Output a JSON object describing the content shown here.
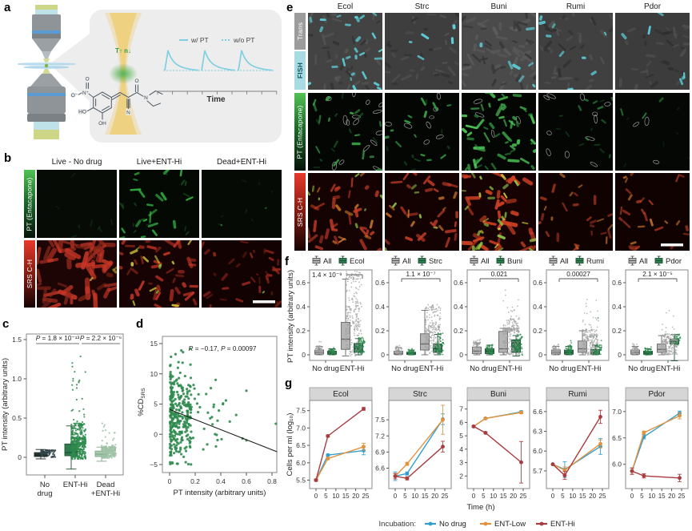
{
  "figure": {
    "letters": {
      "a": "a",
      "b": "b",
      "c": "c",
      "d": "d",
      "e": "e",
      "f": "f",
      "g": "g"
    }
  },
  "panel_a": {
    "legend": {
      "with_pt": "w/ PT",
      "without_pt": "w/o PT"
    },
    "time_label": "Time",
    "thermo_annotation": "T↑ n↓",
    "atom_labels": {
      "o_top": "O",
      "n_plus": "N⁺",
      "o_minus": "O⁻",
      "ho": "HO",
      "oh": "OH",
      "nitrile_n": "N",
      "carbonyl_o": "O",
      "amide_n": "N"
    },
    "colors": {
      "signal_cyan": "#7fcfe2",
      "beam_yellow": "#f0c860",
      "glow_green": "#4fae47",
      "annotation_green": "#2f9e44"
    }
  },
  "panel_b": {
    "columns": [
      "Live - No drug",
      "Live+ENT-Hi",
      "Dead+ENT-Hi"
    ],
    "rows": [
      "PT (Entacapone)",
      "SRS C-H"
    ]
  },
  "panel_e": {
    "columns": [
      "Ecol",
      "Strc",
      "Buni",
      "Rumi",
      "Pdor"
    ],
    "row_labels": [
      "Trans",
      "FISH",
      "PT (Entacapone)",
      "SRS C-H"
    ]
  },
  "chart_data": [
    {
      "id": "c",
      "type": "box",
      "ylabel": "PT intensity (arbitrary units)",
      "yticks": [
        "0",
        "0.5",
        "1.0",
        "1.5"
      ],
      "ylim": [
        -0.45,
        1.62
      ],
      "categories": [
        [
          "No",
          "drug"
        ],
        [
          "ENT-Hi"
        ],
        [
          "Dead",
          "+ENT-Hi"
        ]
      ],
      "p_annotations": [
        "P = 1.8 × 10⁻¹³",
        "P = 2.2 × 10⁻⁶"
      ],
      "boxes": [
        {
          "name": "No drug",
          "color": "#2e3d42",
          "stroke": "#17221f",
          "pt": "#34454b",
          "lo": -0.02,
          "q1": 0.01,
          "med": 0.03,
          "q3": 0.06,
          "hi": 0.1,
          "pmax": 0.09,
          "n": 90
        },
        {
          "name": "ENT-Hi",
          "color": "#2e7d4f",
          "stroke": "#1d5235",
          "pt": "#2f8b4e",
          "lo": -0.15,
          "q1": 0.02,
          "med": 0.06,
          "q3": 0.17,
          "hi": 0.4,
          "pmax": 1.3,
          "n": 420
        },
        {
          "name": "Dead+ENT-Hi",
          "color": "#a9c9ae",
          "stroke": "#7fa98a",
          "pt": "#9fc2a6",
          "lo": -0.05,
          "q1": 0.01,
          "med": 0.04,
          "q3": 0.08,
          "hi": 0.13,
          "pmax": 0.5,
          "n": 200
        }
      ]
    },
    {
      "id": "d",
      "type": "scatter",
      "annotation": "R = −0.17, P = 0.00097",
      "xlabel": "PT intensity (arbitrary units)",
      "ylabel_main": "%CD",
      "ylabel_sub": "SRS",
      "xticks": [
        "0",
        "0.2",
        "0.4",
        "0.6",
        "0.8"
      ],
      "yticks": [
        "−5",
        "0",
        "5",
        "10",
        "15"
      ],
      "xlim": [
        -0.04,
        0.88
      ],
      "ylim": [
        -6.2,
        16.5
      ],
      "regression": {
        "x1": 0,
        "y1": 4.1,
        "x2": 0.84,
        "y2": -2.9
      },
      "point_color": "#2f8b4e",
      "n_points": 350
    },
    {
      "id": "f",
      "type": "box-row",
      "ylabel": "PT intensity (arbitrary units)",
      "yticks": [
        "0",
        "0.2",
        "0.4",
        "0.6"
      ],
      "categories": [
        "No drug",
        "ENT-Hi"
      ],
      "legend_all": "All",
      "box_colors": {
        "all_fill": "#b5b5b5",
        "all_stroke": "#666666",
        "sp_fill": "#2e7d4f",
        "sp_stroke": "#1d5235",
        "all_pt": "#9e9e9e",
        "sp_pt": "#2f8b4e"
      },
      "panels": [
        {
          "species": "Ecol",
          "p_label": "1.4 × 10⁻⁹",
          "no_drug": {
            "all": {
              "lo": 0,
              "q1": 0.005,
              "med": 0.02,
              "q3": 0.04,
              "hi": 0.07,
              "pmax": 0.11,
              "n": 55
            },
            "species": {
              "lo": 0,
              "q1": 0.004,
              "med": 0.015,
              "q3": 0.03,
              "hi": 0.05,
              "pmax": 0.08,
              "n": 35
            }
          },
          "ent_hi": {
            "all": {
              "lo": -0.01,
              "q1": 0.045,
              "med": 0.13,
              "q3": 0.27,
              "hi": 0.63,
              "pmax": 0.7,
              "n": 260
            },
            "species": {
              "lo": 0,
              "q1": 0.02,
              "med": 0.05,
              "q3": 0.095,
              "hi": 0.135,
              "pmax": 0.15,
              "n": 50
            }
          }
        },
        {
          "species": "Strc",
          "p_label": "1.1 × 10⁻⁷",
          "no_drug": {
            "all": {
              "lo": 0,
              "q1": 0.004,
              "med": 0.012,
              "q3": 0.03,
              "hi": 0.06,
              "pmax": 0.08,
              "n": 50
            },
            "species": {
              "lo": 0,
              "q1": 0.003,
              "med": 0.01,
              "q3": 0.022,
              "hi": 0.04,
              "pmax": 0.06,
              "n": 35
            }
          },
          "ent_hi": {
            "all": {
              "lo": 0,
              "q1": 0.04,
              "med": 0.09,
              "q3": 0.175,
              "hi": 0.37,
              "pmax": 0.42,
              "n": 230
            },
            "species": {
              "lo": 0,
              "q1": 0.02,
              "med": 0.05,
              "q3": 0.09,
              "hi": 0.17,
              "pmax": 0.18,
              "n": 45
            }
          }
        },
        {
          "species": "Buni",
          "p_label": "0.021",
          "no_drug": {
            "all": {
              "lo": 0,
              "q1": 0.01,
              "med": 0.03,
              "q3": 0.065,
              "hi": 0.1,
              "pmax": 0.13,
              "n": 55
            },
            "species": {
              "lo": 0,
              "q1": 0.01,
              "med": 0.03,
              "q3": 0.05,
              "hi": 0.08,
              "pmax": 0.1,
              "n": 35
            }
          },
          "ent_hi": {
            "all": {
              "lo": 0,
              "q1": 0.02,
              "med": 0.05,
              "q3": 0.195,
              "hi": 0.22,
              "pmax": 0.56,
              "n": 240
            },
            "species": {
              "lo": -0.01,
              "q1": 0.02,
              "med": 0.1,
              "q3": 0.125,
              "hi": 0.16,
              "pmax": 0.17,
              "n": 30
            }
          }
        },
        {
          "species": "Rumi",
          "p_label": "0.00027",
          "no_drug": {
            "all": {
              "lo": 0,
              "q1": 0.005,
              "med": 0.02,
              "q3": 0.04,
              "hi": 0.07,
              "pmax": 0.1,
              "n": 50
            },
            "species": {
              "lo": 0,
              "q1": 0.005,
              "med": 0.02,
              "q3": 0.04,
              "hi": 0.07,
              "pmax": 0.12,
              "n": 40
            }
          },
          "ent_hi": {
            "all": {
              "lo": 0,
              "q1": 0.02,
              "med": 0.05,
              "q3": 0.115,
              "hi": 0.2,
              "pmax": 0.46,
              "n": 210
            },
            "species": {
              "lo": 0,
              "q1": 0.004,
              "med": 0.02,
              "q3": 0.045,
              "hi": 0.08,
              "pmax": 0.32,
              "n": 45
            }
          }
        },
        {
          "species": "Pdor",
          "p_label": "2.1 × 10⁻⁵",
          "no_drug": {
            "all": {
              "lo": 0,
              "q1": 0.005,
              "med": 0.02,
              "q3": 0.04,
              "hi": 0.07,
              "pmax": 0.1,
              "n": 50
            },
            "species": {
              "lo": 0,
              "q1": 0.004,
              "med": 0.015,
              "q3": 0.03,
              "hi": 0.05,
              "pmax": 0.07,
              "n": 35
            }
          },
          "ent_hi": {
            "all": {
              "lo": 0,
              "q1": 0.02,
              "med": 0.045,
              "q3": 0.09,
              "hi": 0.16,
              "pmax": 0.46,
              "n": 210
            },
            "species": {
              "lo": -0.05,
              "q1": 0.09,
              "med": 0.11,
              "q3": 0.13,
              "hi": 0.17,
              "pmax": 0.17,
              "n": 28
            }
          }
        }
      ]
    },
    {
      "id": "g",
      "type": "line-row",
      "ylabel": "Cells per ml (log₁₀)",
      "xlabel": "Time (h)",
      "xticks": [
        0,
        5,
        10,
        15,
        20,
        25
      ],
      "x": [
        0,
        6,
        24
      ],
      "legend": {
        "label": "Incubation:",
        "series": [
          "No drug",
          "ENT-Low",
          "ENT-Hi"
        ]
      },
      "colors": {
        "no_drug": "#2e9fd0",
        "ent_low": "#e2923c",
        "ent_hi": "#a93a3e"
      },
      "panels": [
        {
          "title": "Ecol",
          "yticks": [
            "5.5",
            "6.0",
            "6.5",
            "7.0",
            "7.5"
          ],
          "ylim": [
            5.35,
            7.7
          ],
          "series": [
            {
              "name": "No drug",
              "values": [
                5.5,
                6.22,
                6.35
              ],
              "err": [
                0.03,
                0.03,
                0.12
              ]
            },
            {
              "name": "ENT-Low",
              "values": [
                5.5,
                6.12,
                6.46
              ],
              "err": [
                0.03,
                0.03,
                0.1
              ]
            },
            {
              "name": "ENT-Hi",
              "values": [
                5.5,
                6.77,
                7.55
              ],
              "err": [
                0.03,
                0.03,
                0.04
              ]
            }
          ]
        },
        {
          "title": "Strc",
          "yticks": [
            "6.6",
            "6.9",
            "7.2",
            "7.5"
          ],
          "ylim": [
            6.28,
            7.8
          ],
          "series": [
            {
              "name": "No drug",
              "values": [
                6.45,
                6.5,
                7.51
              ],
              "err": [
                0.08,
                0.03,
                0.1
              ]
            },
            {
              "name": "ENT-Low",
              "values": [
                6.45,
                6.68,
                7.5
              ],
              "err": [
                0.05,
                0.03,
                0.27
              ]
            },
            {
              "name": "ENT-Hi",
              "values": [
                6.45,
                6.41,
                7.0
              ],
              "err": [
                0.05,
                0.03,
                0.1
              ]
            }
          ]
        },
        {
          "title": "Buni",
          "yticks": [
            "2",
            "3",
            "4",
            "5",
            "6",
            "7"
          ],
          "ylim": [
            1.3,
            7.4
          ],
          "series": [
            {
              "name": "No drug",
              "values": [
                5.7,
                6.3,
                6.78
              ],
              "err": [
                0.05,
                0.05,
                0.08
              ]
            },
            {
              "name": "ENT-Low",
              "values": [
                5.7,
                6.3,
                6.74
              ],
              "err": [
                0.05,
                0.05,
                0.08
              ]
            },
            {
              "name": "ENT-Hi",
              "values": [
                5.7,
                5.22,
                3.02
              ],
              "err": [
                0.05,
                0.08,
                1.55
              ]
            }
          ]
        },
        {
          "title": "Rumi",
          "yticks": [
            "5.7",
            "6.0",
            "6.3",
            "6.6"
          ],
          "ylim": [
            5.48,
            6.72
          ],
          "series": [
            {
              "name": "No drug",
              "values": [
                5.8,
                5.72,
                6.07
              ],
              "err": [
                0.02,
                0.12,
                0.12
              ]
            },
            {
              "name": "ENT-Low",
              "values": [
                5.8,
                5.71,
                6.11
              ],
              "err": [
                0.02,
                0.05,
                0.06
              ]
            },
            {
              "name": "ENT-Hi",
              "values": [
                5.8,
                5.63,
                6.52
              ],
              "err": [
                0.02,
                0.06,
                0.1
              ]
            }
          ]
        },
        {
          "title": "Pdor",
          "yticks": [
            "6.0",
            "6.5",
            "7.0"
          ],
          "ylim": [
            5.6,
            7.15
          ],
          "series": [
            {
              "name": "No drug",
              "values": [
                5.87,
                6.52,
                6.97
              ],
              "err": [
                0.06,
                0.04,
                0.04
              ]
            },
            {
              "name": "ENT-Low",
              "values": [
                5.87,
                6.6,
                6.92
              ],
              "err": [
                0.06,
                0.03,
                0.06
              ]
            },
            {
              "name": "ENT-Hi",
              "values": [
                5.87,
                5.78,
                5.74
              ],
              "err": [
                0.06,
                0.04,
                0.07
              ]
            }
          ]
        }
      ]
    }
  ]
}
